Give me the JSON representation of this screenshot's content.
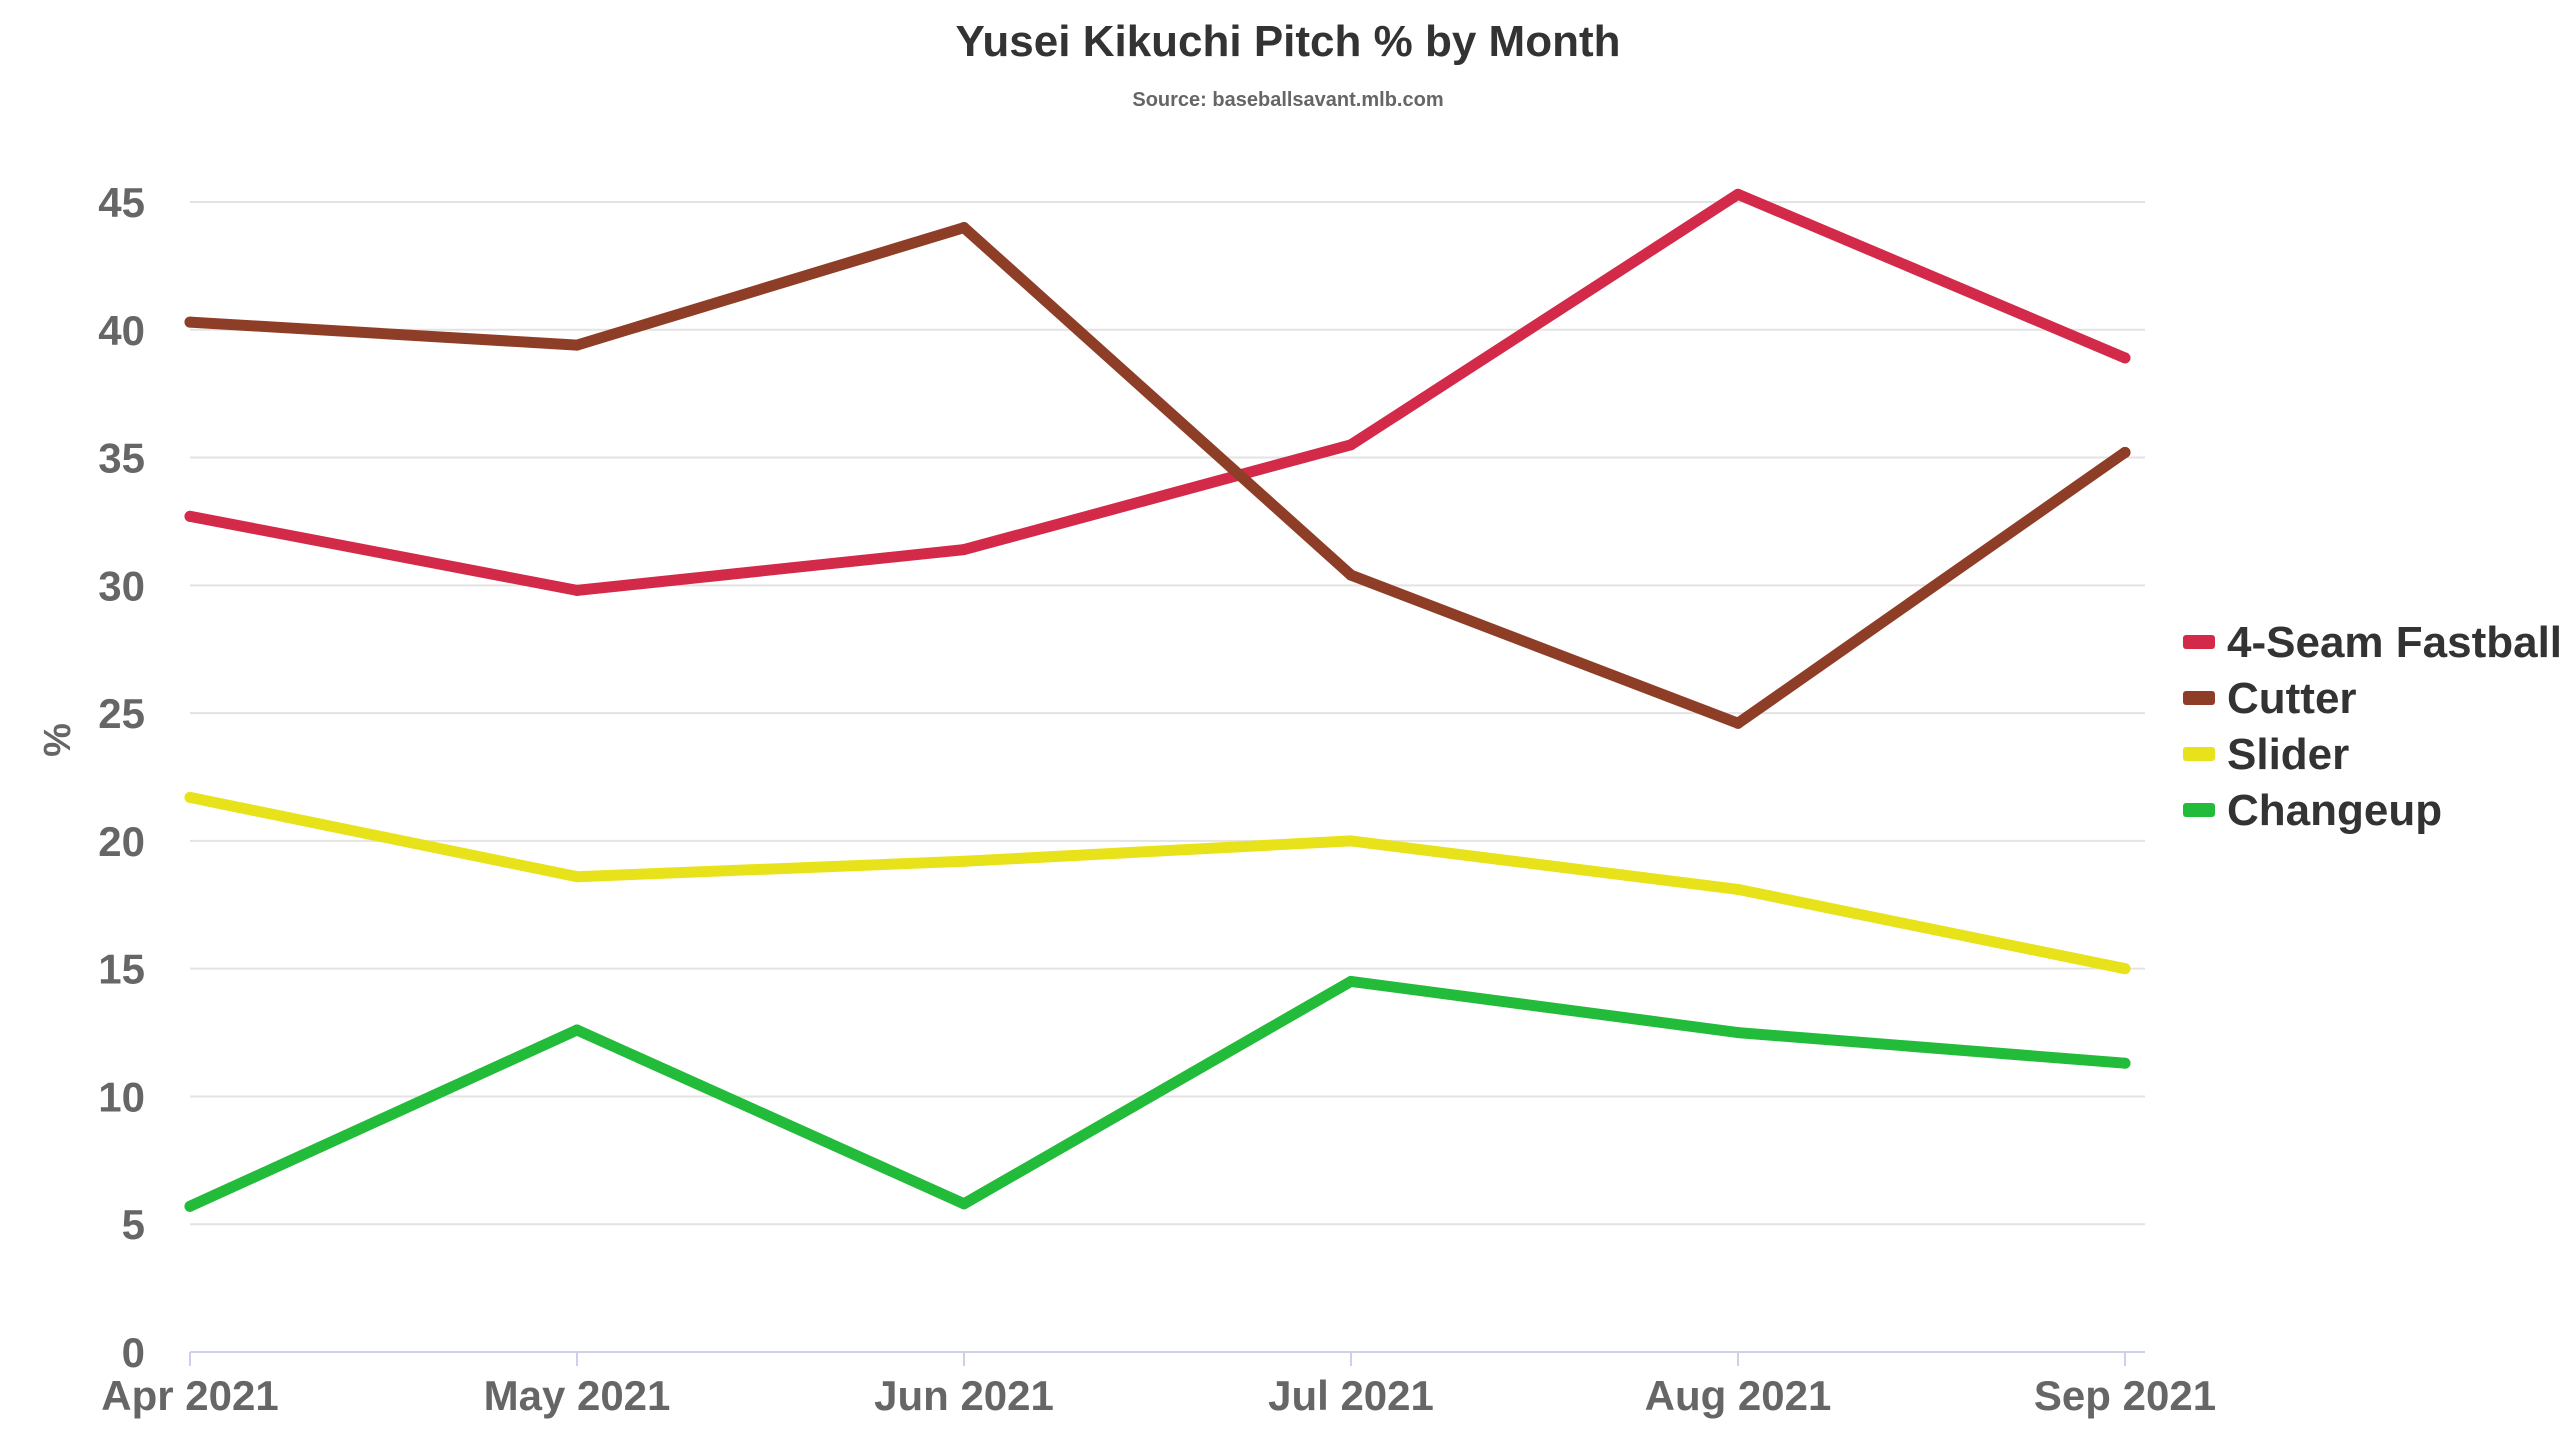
{
  "chart_data": {
    "type": "line",
    "title": "Yusei Kikuchi Pitch % by Month",
    "subtitle": "Source: baseballsavant.mlb.com",
    "xlabel": "",
    "ylabel": "%",
    "categories": [
      "Apr 2021",
      "May 2021",
      "Jun 2021",
      "Jul 2021",
      "Aug 2021",
      "Sep 2021"
    ],
    "ylim": [
      0,
      45
    ],
    "yticks": [
      0,
      5,
      10,
      15,
      20,
      25,
      30,
      35,
      40,
      45
    ],
    "grid": true,
    "legend_position": "right",
    "series": [
      {
        "name": "4-Seam Fastball",
        "color": "#d42a4a",
        "values": [
          32.7,
          29.8,
          31.4,
          35.5,
          45.3,
          38.9
        ]
      },
      {
        "name": "Cutter",
        "color": "#8e3e27",
        "values": [
          40.3,
          39.4,
          44.0,
          30.4,
          24.6,
          35.2
        ]
      },
      {
        "name": "Slider",
        "color": "#e8e21a",
        "values": [
          21.7,
          18.6,
          19.2,
          20.0,
          18.1,
          15.0
        ]
      },
      {
        "name": "Changeup",
        "color": "#22bb3a",
        "values": [
          5.7,
          12.6,
          5.8,
          14.5,
          12.5,
          11.3
        ]
      }
    ]
  }
}
